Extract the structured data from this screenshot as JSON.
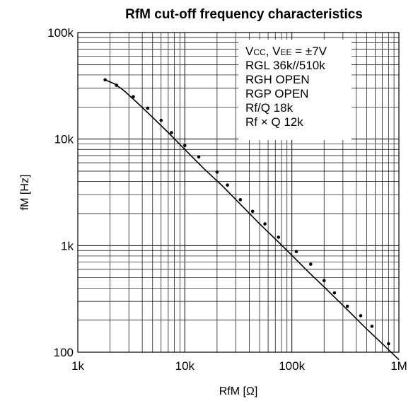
{
  "chart_data": {
    "type": "line",
    "title": "RfM cut-off frequency characteristics",
    "xlabel": "RfM [Ω]",
    "ylabel": "fM [Hz]",
    "x_scale": "log",
    "y_scale": "log",
    "xlim": [
      1000,
      1000000
    ],
    "ylim": [
      100,
      100000
    ],
    "x_tick_labels": [
      "1k",
      "10k",
      "100k",
      "1M"
    ],
    "y_tick_labels": [
      "100",
      "1k",
      "10k",
      "100k"
    ],
    "grid": true,
    "annotations": [
      "VCC, VEE = ±7V",
      "RGL 36k//510k",
      "RGH OPEN",
      "RGP OPEN",
      "Rf/Q 18k",
      "Rf × Q 12k"
    ],
    "series": [
      {
        "style": "line",
        "x": [
          1800,
          2200,
          2700,
          3500,
          5000,
          7000,
          10000,
          15000,
          22000,
          33000,
          50000,
          75000,
          100000,
          150000,
          200000,
          300000,
          500000,
          700000,
          1000000
        ],
        "y": [
          36000,
          33000,
          28500,
          22500,
          16000,
          11500,
          8000,
          5300,
          3700,
          2450,
          1600,
          1080,
          810,
          540,
          410,
          275,
          165,
          120,
          85
        ]
      },
      {
        "style": "markers",
        "x": [
          1800,
          2300,
          3300,
          4500,
          6000,
          7500,
          10000,
          13500,
          20000,
          25000,
          33000,
          43000,
          56000,
          75000,
          110000,
          150000,
          200000,
          250000,
          330000,
          440000,
          560000,
          800000
        ],
        "y": [
          36000,
          32000,
          25000,
          19500,
          15000,
          11500,
          8700,
          6800,
          4900,
          3700,
          2700,
          2100,
          1600,
          1200,
          880,
          670,
          470,
          360,
          270,
          220,
          175,
          120
        ]
      }
    ]
  }
}
